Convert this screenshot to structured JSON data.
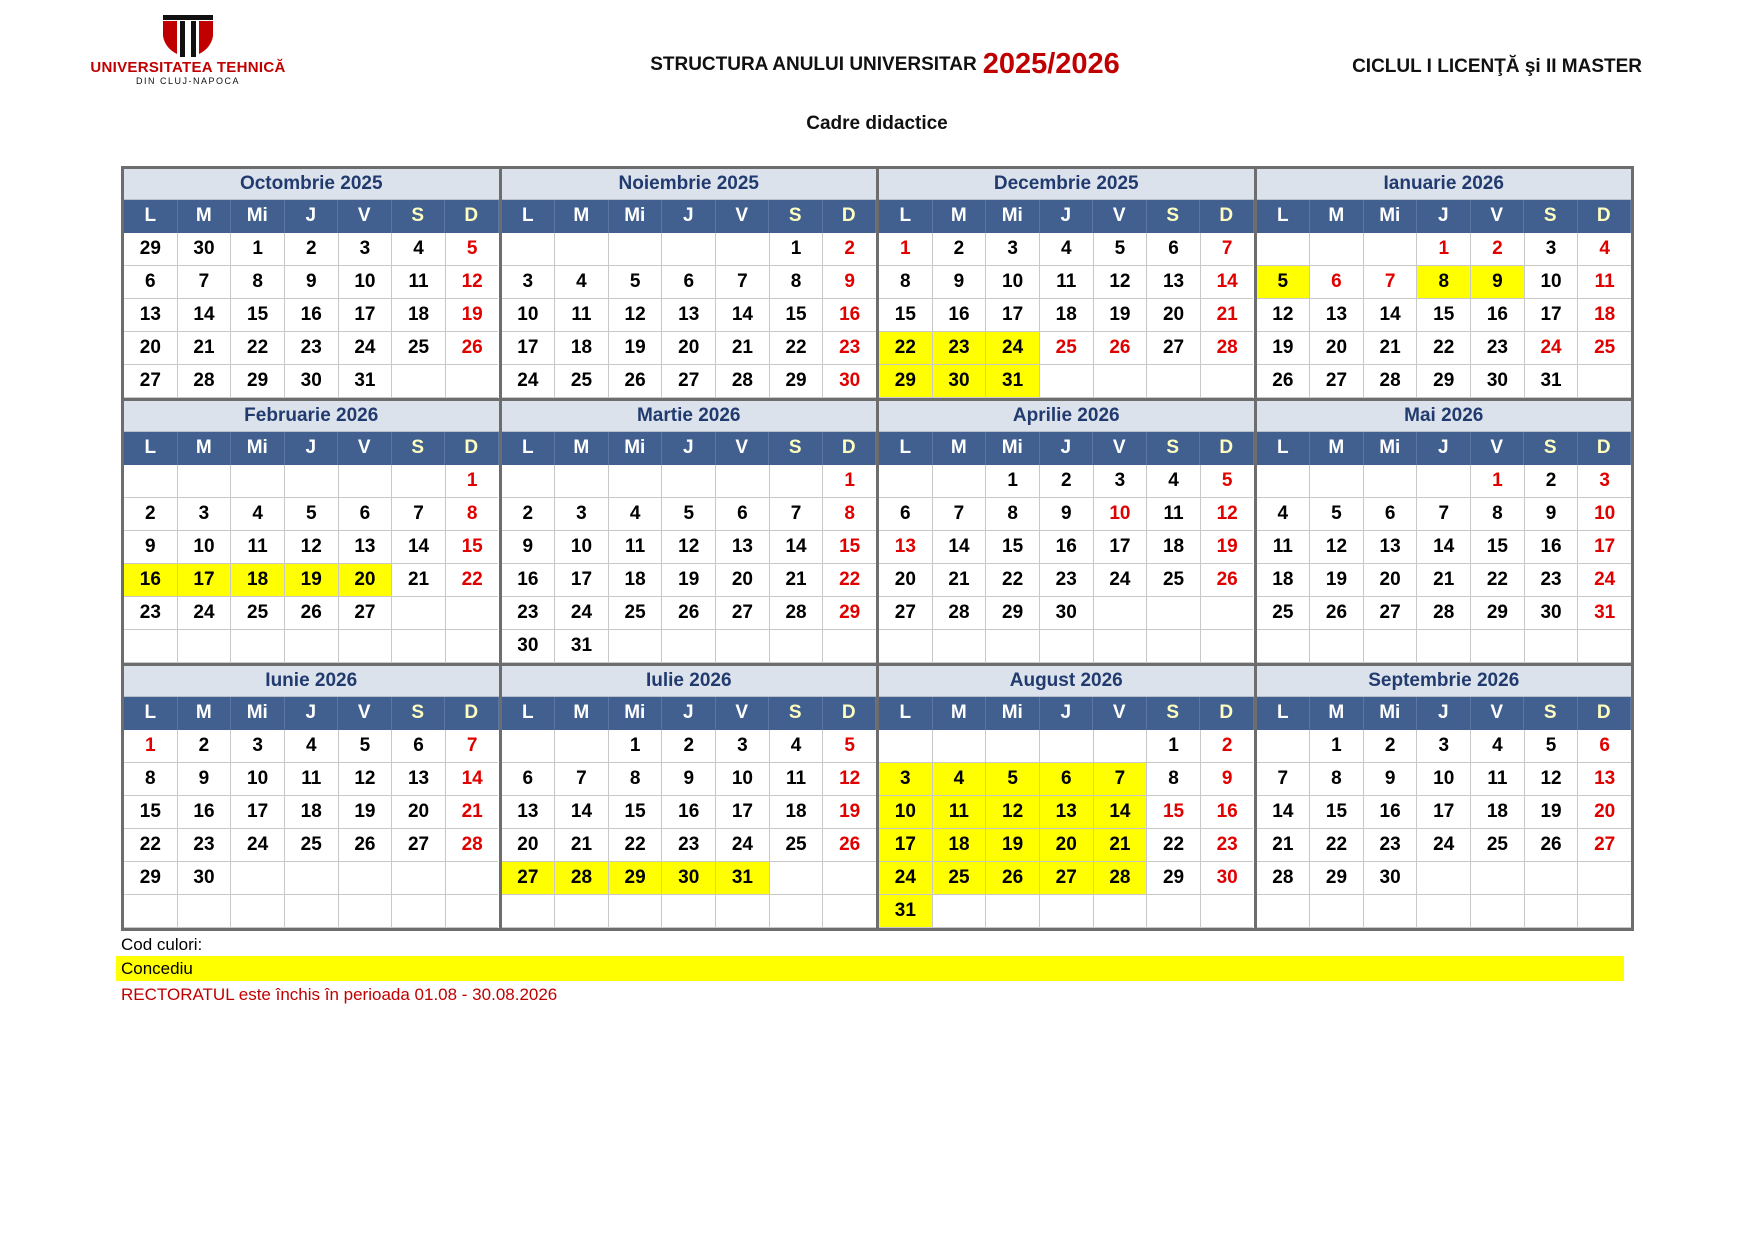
{
  "header": {
    "logo_text": "UNIVERSITATEA TEHNICĂ",
    "logo_subtext": "DIN CLUJ-NAPOCA",
    "title": "STRUCTURA ANULUI UNIVERSITAR",
    "year": "2025/2026",
    "cycle": "CICLUL I LICENŢĂ  şi  II MASTER",
    "subtitle": "Cadre didactice"
  },
  "colors": {
    "holiday_red": "#e00000",
    "concediu_yellow": "#ffff00",
    "header_blue": "#41608f",
    "title_bg": "#dce2ec",
    "brand_red": "#c00000"
  },
  "weekdays": [
    "L",
    "M",
    "Mi",
    "J",
    "V",
    "S",
    "D"
  ],
  "months": [
    {
      "name": "Octombrie 2025",
      "weeks": [
        [
          "29",
          "30",
          "1",
          "2",
          "3",
          "4",
          "5"
        ],
        [
          "6",
          "7",
          "8",
          "9",
          "10",
          "11",
          "12"
        ],
        [
          "13",
          "14",
          "15",
          "16",
          "17",
          "18",
          "19"
        ],
        [
          "20",
          "21",
          "22",
          "23",
          "24",
          "25",
          "26"
        ],
        [
          "27",
          "28",
          "29",
          "30",
          "31",
          "",
          ""
        ]
      ],
      "red": [
        "5",
        "12",
        "19",
        "26"
      ],
      "concediu": []
    },
    {
      "name": "Noiembrie 2025",
      "weeks": [
        [
          "",
          "",
          "",
          "",
          "",
          "1",
          "2"
        ],
        [
          "3",
          "4",
          "5",
          "6",
          "7",
          "8",
          "9"
        ],
        [
          "10",
          "11",
          "12",
          "13",
          "14",
          "15",
          "16"
        ],
        [
          "17",
          "18",
          "19",
          "20",
          "21",
          "22",
          "23"
        ],
        [
          "24",
          "25",
          "26",
          "27",
          "28",
          "29",
          "30"
        ]
      ],
      "red": [
        "2",
        "9",
        "16",
        "23",
        "30"
      ],
      "concediu": []
    },
    {
      "name": "Decembrie 2025",
      "weeks": [
        [
          "1",
          "2",
          "3",
          "4",
          "5",
          "6",
          "7"
        ],
        [
          "8",
          "9",
          "10",
          "11",
          "12",
          "13",
          "14"
        ],
        [
          "15",
          "16",
          "17",
          "18",
          "19",
          "20",
          "21"
        ],
        [
          "22",
          "23",
          "24",
          "25",
          "26",
          "27",
          "28"
        ],
        [
          "29",
          "30",
          "31",
          "",
          "",
          "",
          ""
        ]
      ],
      "red": [
        "1",
        "7",
        "14",
        "21",
        "25",
        "26",
        "28"
      ],
      "concediu": [
        "22",
        "23",
        "24",
        "29",
        "30",
        "31"
      ]
    },
    {
      "name": "Ianuarie 2026",
      "weeks": [
        [
          "",
          "",
          "",
          "1",
          "2",
          "3",
          "4"
        ],
        [
          "5",
          "6",
          "7",
          "8",
          "9",
          "10",
          "11"
        ],
        [
          "12",
          "13",
          "14",
          "15",
          "16",
          "17",
          "18"
        ],
        [
          "19",
          "20",
          "21",
          "22",
          "23",
          "24",
          "25"
        ],
        [
          "26",
          "27",
          "28",
          "29",
          "30",
          "31",
          ""
        ]
      ],
      "red": [
        "1",
        "2",
        "4",
        "6",
        "7",
        "11",
        "18",
        "24",
        "25"
      ],
      "concediu": [
        "5",
        "8",
        "9"
      ]
    },
    {
      "name": "Februarie 2026",
      "weeks": [
        [
          "",
          "",
          "",
          "",
          "",
          "",
          "1"
        ],
        [
          "2",
          "3",
          "4",
          "5",
          "6",
          "7",
          "8"
        ],
        [
          "9",
          "10",
          "11",
          "12",
          "13",
          "14",
          "15"
        ],
        [
          "16",
          "17",
          "18",
          "19",
          "20",
          "21",
          "22"
        ],
        [
          "23",
          "24",
          "25",
          "26",
          "27",
          "",
          ""
        ],
        [
          "",
          "",
          "",
          "",
          "",
          "",
          ""
        ]
      ],
      "red": [
        "1",
        "8",
        "15",
        "22"
      ],
      "concediu": [
        "16",
        "17",
        "18",
        "19",
        "20"
      ]
    },
    {
      "name": "Martie 2026",
      "weeks": [
        [
          "",
          "",
          "",
          "",
          "",
          "",
          "1"
        ],
        [
          "2",
          "3",
          "4",
          "5",
          "6",
          "7",
          "8"
        ],
        [
          "9",
          "10",
          "11",
          "12",
          "13",
          "14",
          "15"
        ],
        [
          "16",
          "17",
          "18",
          "19",
          "20",
          "21",
          "22"
        ],
        [
          "23",
          "24",
          "25",
          "26",
          "27",
          "28",
          "29"
        ],
        [
          "30",
          "31",
          "",
          "",
          "",
          "",
          ""
        ]
      ],
      "red": [
        "1",
        "8",
        "15",
        "22",
        "29"
      ],
      "concediu": []
    },
    {
      "name": "Aprilie 2026",
      "weeks": [
        [
          "",
          "",
          "1",
          "2",
          "3",
          "4",
          "5"
        ],
        [
          "6",
          "7",
          "8",
          "9",
          "10",
          "11",
          "12"
        ],
        [
          "13",
          "14",
          "15",
          "16",
          "17",
          "18",
          "19"
        ],
        [
          "20",
          "21",
          "22",
          "23",
          "24",
          "25",
          "26"
        ],
        [
          "27",
          "28",
          "29",
          "30",
          "",
          "",
          ""
        ],
        [
          "",
          "",
          "",
          "",
          "",
          "",
          ""
        ]
      ],
      "red": [
        "5",
        "10",
        "12",
        "13",
        "19",
        "26"
      ],
      "concediu": []
    },
    {
      "name": "Mai 2026",
      "weeks": [
        [
          "",
          "",
          "",
          "",
          "1",
          "2",
          "3"
        ],
        [
          "4",
          "5",
          "6",
          "7",
          "8",
          "9",
          "10"
        ],
        [
          "11",
          "12",
          "13",
          "14",
          "15",
          "16",
          "17"
        ],
        [
          "18",
          "19",
          "20",
          "21",
          "22",
          "23",
          "24"
        ],
        [
          "25",
          "26",
          "27",
          "28",
          "29",
          "30",
          "31"
        ],
        [
          "",
          "",
          "",
          "",
          "",
          "",
          ""
        ]
      ],
      "red": [
        "1",
        "3",
        "10",
        "17",
        "24",
        "31"
      ],
      "concediu": []
    },
    {
      "name": "Iunie 2026",
      "weeks": [
        [
          "1",
          "2",
          "3",
          "4",
          "5",
          "6",
          "7"
        ],
        [
          "8",
          "9",
          "10",
          "11",
          "12",
          "13",
          "14"
        ],
        [
          "15",
          "16",
          "17",
          "18",
          "19",
          "20",
          "21"
        ],
        [
          "22",
          "23",
          "24",
          "25",
          "26",
          "27",
          "28"
        ],
        [
          "29",
          "30",
          "",
          "",
          "",
          "",
          ""
        ],
        [
          "",
          "",
          "",
          "",
          "",
          "",
          ""
        ]
      ],
      "red": [
        "1",
        "7",
        "14",
        "21",
        "28"
      ],
      "concediu": []
    },
    {
      "name": "Iulie 2026",
      "weeks": [
        [
          "",
          "",
          "1",
          "2",
          "3",
          "4",
          "5"
        ],
        [
          "6",
          "7",
          "8",
          "9",
          "10",
          "11",
          "12"
        ],
        [
          "13",
          "14",
          "15",
          "16",
          "17",
          "18",
          "19"
        ],
        [
          "20",
          "21",
          "22",
          "23",
          "24",
          "25",
          "26"
        ],
        [
          "27",
          "28",
          "29",
          "30",
          "31",
          "",
          ""
        ],
        [
          "",
          "",
          "",
          "",
          "",
          "",
          ""
        ]
      ],
      "red": [
        "5",
        "12",
        "19",
        "26"
      ],
      "concediu": [
        "27",
        "28",
        "29",
        "30",
        "31"
      ]
    },
    {
      "name": "August 2026",
      "weeks": [
        [
          "",
          "",
          "",
          "",
          "",
          "1",
          "2"
        ],
        [
          "3",
          "4",
          "5",
          "6",
          "7",
          "8",
          "9"
        ],
        [
          "10",
          "11",
          "12",
          "13",
          "14",
          "15",
          "16"
        ],
        [
          "17",
          "18",
          "19",
          "20",
          "21",
          "22",
          "23"
        ],
        [
          "24",
          "25",
          "26",
          "27",
          "28",
          "29",
          "30"
        ],
        [
          "31",
          "",
          "",
          "",
          "",
          "",
          ""
        ]
      ],
      "red": [
        "2",
        "9",
        "15",
        "16",
        "23",
        "30"
      ],
      "concediu": [
        "3",
        "4",
        "5",
        "6",
        "7",
        "10",
        "11",
        "12",
        "13",
        "14",
        "17",
        "18",
        "19",
        "20",
        "21",
        "24",
        "25",
        "26",
        "27",
        "28",
        "31"
      ]
    },
    {
      "name": "Septembrie 2026",
      "weeks": [
        [
          "",
          "1",
          "2",
          "3",
          "4",
          "5",
          "6"
        ],
        [
          "7",
          "8",
          "9",
          "10",
          "11",
          "12",
          "13"
        ],
        [
          "14",
          "15",
          "16",
          "17",
          "18",
          "19",
          "20"
        ],
        [
          "21",
          "22",
          "23",
          "24",
          "25",
          "26",
          "27"
        ],
        [
          "28",
          "29",
          "30",
          "",
          "",
          "",
          ""
        ],
        [
          "",
          "",
          "",
          "",
          "",
          "",
          ""
        ]
      ],
      "red": [
        "6",
        "13",
        "20",
        "27"
      ],
      "concediu": []
    }
  ],
  "legend": {
    "label": "Cod culori:",
    "concediu": "Concediu",
    "note": "RECTORATUL este închis în perioada 01.08 - 30.08.2026"
  }
}
